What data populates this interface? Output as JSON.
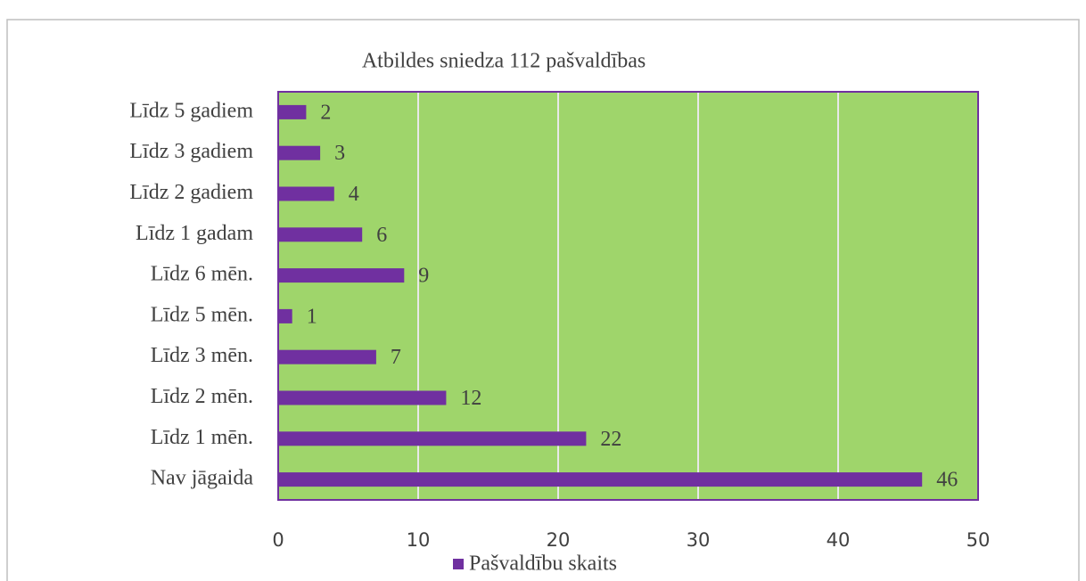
{
  "chart_data": {
    "type": "bar",
    "orientation": "horizontal",
    "title": "Atbildes sniedza 112 pašvaldības",
    "categories": [
      "Līdz 5 gadiem",
      "Līdz 3 gadiem",
      "Līdz 2 gadiem",
      "Līdz 1 gadam",
      "Līdz 6 mēn.",
      "Līdz 5 mēn.",
      "Līdz 3 mēn.",
      "Līdz 2 mēn.",
      "Līdz 1 mēn.",
      "Nav jāgaida"
    ],
    "series": [
      {
        "name": "Pašvaldību skaits",
        "color": "#7030a0",
        "values": [
          2,
          3,
          4,
          6,
          9,
          1,
          7,
          12,
          22,
          46
        ]
      }
    ],
    "xlim": [
      0,
      50
    ],
    "xticks": [
      0,
      10,
      20,
      30,
      40,
      50
    ],
    "grid": true,
    "plot_background": "#9fd56b",
    "legend": "bottom"
  }
}
